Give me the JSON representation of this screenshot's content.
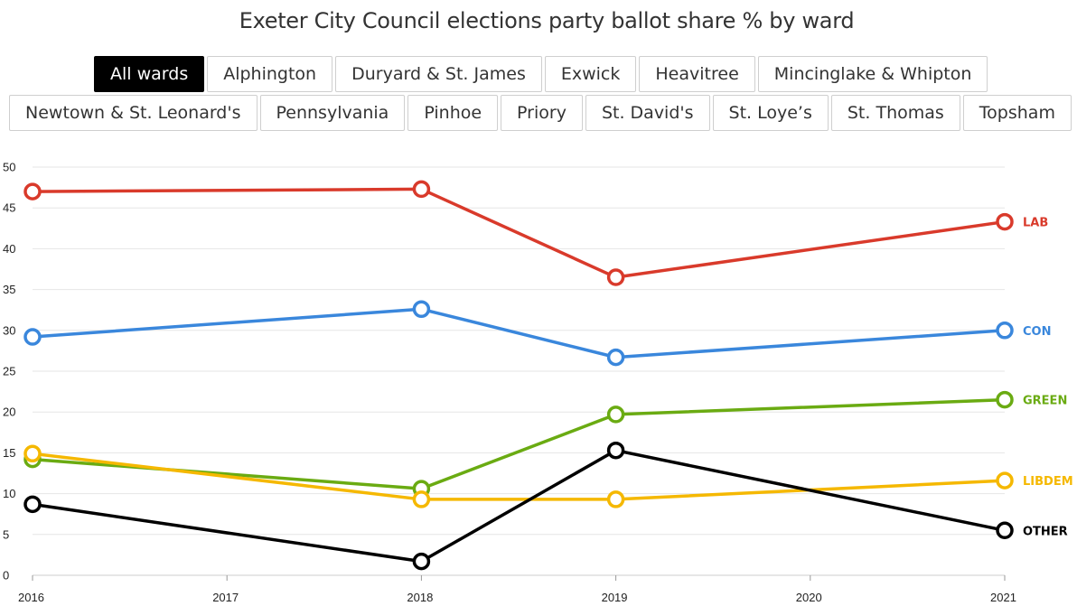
{
  "title": "Exeter City Council elections party ballot share % by ward",
  "tabs": {
    "row1": [
      "All wards",
      "Alphington",
      "Duryard & St. James",
      "Exwick",
      "Heavitree",
      "Mincinglake & Whipton"
    ],
    "row2": [
      "Newtown & St. Leonard's",
      "Pennsylvania",
      "Pinhoe",
      "Priory",
      "St. David's",
      "St. Loye’s",
      "St. Thomas",
      "Topsham"
    ],
    "active": "All wards"
  },
  "chart_data": {
    "type": "line",
    "title": "Exeter City Council elections party ballot share % by ward",
    "xlabel": "",
    "ylabel": "",
    "xlim": [
      2016,
      2021
    ],
    "ylim": [
      0,
      50
    ],
    "x_ticks": [
      2016,
      2017,
      2018,
      2019,
      2020,
      2021
    ],
    "y_ticks": [
      0,
      5,
      10,
      15,
      20,
      25,
      30,
      35,
      40,
      45,
      50
    ],
    "grid": "horizontal",
    "x": [
      2016,
      2018,
      2019,
      2021
    ],
    "series": [
      {
        "name": "LAB",
        "color": "#d93a2b",
        "values": [
          47.0,
          47.3,
          36.5,
          43.3
        ]
      },
      {
        "name": "CON",
        "color": "#3a87dc",
        "values": [
          29.2,
          32.6,
          26.7,
          30.0
        ]
      },
      {
        "name": "GREEN",
        "color": "#6aab12",
        "values": [
          14.2,
          10.6,
          19.7,
          21.5
        ]
      },
      {
        "name": "LIBDEM",
        "color": "#f5b800",
        "values": [
          14.9,
          9.3,
          9.3,
          11.6
        ]
      },
      {
        "name": "OTHER",
        "color": "#000000",
        "values": [
          8.7,
          1.7,
          15.3,
          5.5
        ]
      }
    ]
  }
}
